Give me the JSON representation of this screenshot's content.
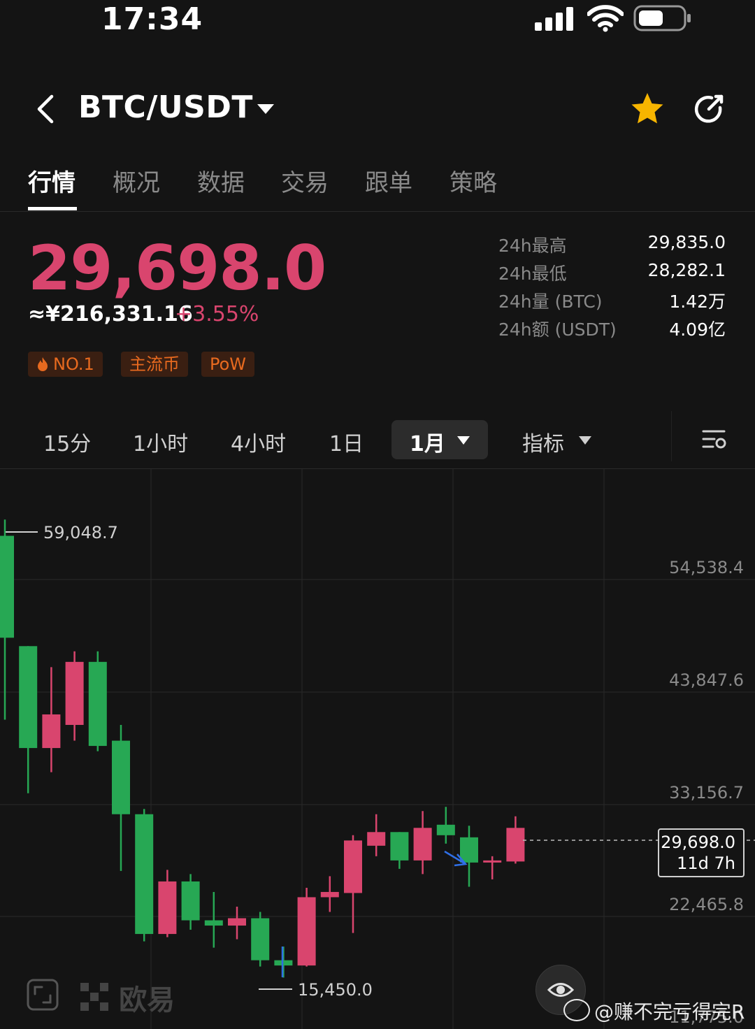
{
  "status_bar": {
    "time": "17:34"
  },
  "header": {
    "pair": "BTC/USDT"
  },
  "tabs": [
    {
      "label": "行情",
      "active": true
    },
    {
      "label": "概况"
    },
    {
      "label": "数据"
    },
    {
      "label": "交易"
    },
    {
      "label": "跟单"
    },
    {
      "label": "策略"
    }
  ],
  "price": {
    "last": "29,698.0",
    "cny": "≈¥216,331.16",
    "change": "+3.55%"
  },
  "tags": [
    "NO.1",
    "主流币",
    "PoW"
  ],
  "stats": [
    {
      "label": "24h最高",
      "value": "29,835.0"
    },
    {
      "label": "24h最低",
      "value": "28,282.1"
    },
    {
      "label": "24h量 (BTC)",
      "value": "1.42万"
    },
    {
      "label": "24h额 (USDT)",
      "value": "4.09亿"
    }
  ],
  "intervals": [
    "15分",
    "1小时",
    "4小时",
    "1日",
    "1月",
    "指标"
  ],
  "selected_interval": "1月",
  "colors": {
    "up": "#d9456e",
    "down": "#27a854",
    "bg": "#141414",
    "tag": "#e86a1f"
  },
  "chart_data": {
    "type": "candlestick",
    "y_axis_ticks": [
      "54,538.4",
      "43,847.6",
      "33,156.7",
      "22,465.8",
      "11,775.0"
    ],
    "high_label": "59,048.7",
    "low_label": "15,450.0",
    "current_price_label": "29,698.0",
    "countdown_label": "11d 7h",
    "candles": [
      {
        "open": 57500,
        "close": 47800,
        "high": 59048.7,
        "low": 40000
      },
      {
        "open": 47000,
        "close": 37300,
        "high": 47000,
        "low": 33000
      },
      {
        "open": 37300,
        "close": 40500,
        "high": 45000,
        "low": 35000
      },
      {
        "open": 39500,
        "close": 45500,
        "high": 46500,
        "low": 38000
      },
      {
        "open": 45500,
        "close": 37500,
        "high": 46500,
        "low": 37000
      },
      {
        "open": 38000,
        "close": 31000,
        "high": 39500,
        "low": 25600
      },
      {
        "open": 31000,
        "close": 19600,
        "high": 31500,
        "low": 18900
      },
      {
        "open": 19600,
        "close": 24600,
        "high": 25700,
        "low": 19300
      },
      {
        "open": 24600,
        "close": 20900,
        "high": 25300,
        "low": 20000
      },
      {
        "open": 20900,
        "close": 20400,
        "high": 23600,
        "low": 18300
      },
      {
        "open": 20400,
        "close": 21100,
        "high": 22200,
        "low": 19100
      },
      {
        "open": 21100,
        "close": 17100,
        "high": 21700,
        "low": 16500
      },
      {
        "open": 17100,
        "close": 16600,
        "high": 18400,
        "low": 15450
      },
      {
        "open": 16600,
        "close": 23100,
        "high": 24000,
        "low": 16500
      },
      {
        "open": 23100,
        "close": 23600,
        "high": 25100,
        "low": 21700
      },
      {
        "open": 23500,
        "close": 28500,
        "high": 29000,
        "low": 19700
      },
      {
        "open": 28000,
        "close": 29300,
        "high": 31000,
        "low": 27000
      },
      {
        "open": 29300,
        "close": 26600,
        "high": 29300,
        "low": 25800
      },
      {
        "open": 26600,
        "close": 29700,
        "high": 31300,
        "low": 25300
      },
      {
        "open": 30000,
        "close": 29000,
        "high": 31700,
        "low": 28200
      },
      {
        "open": 28800,
        "close": 26400,
        "high": 29900,
        "low": 24100
      },
      {
        "open": 26500,
        "close": 26600,
        "high": 27000,
        "low": 24800
      },
      {
        "open": 26500,
        "close": 29698,
        "high": 30800,
        "low": 26300
      }
    ]
  },
  "logo": {
    "brand": "欧易"
  },
  "watermark": "@赚不完亏得完R"
}
